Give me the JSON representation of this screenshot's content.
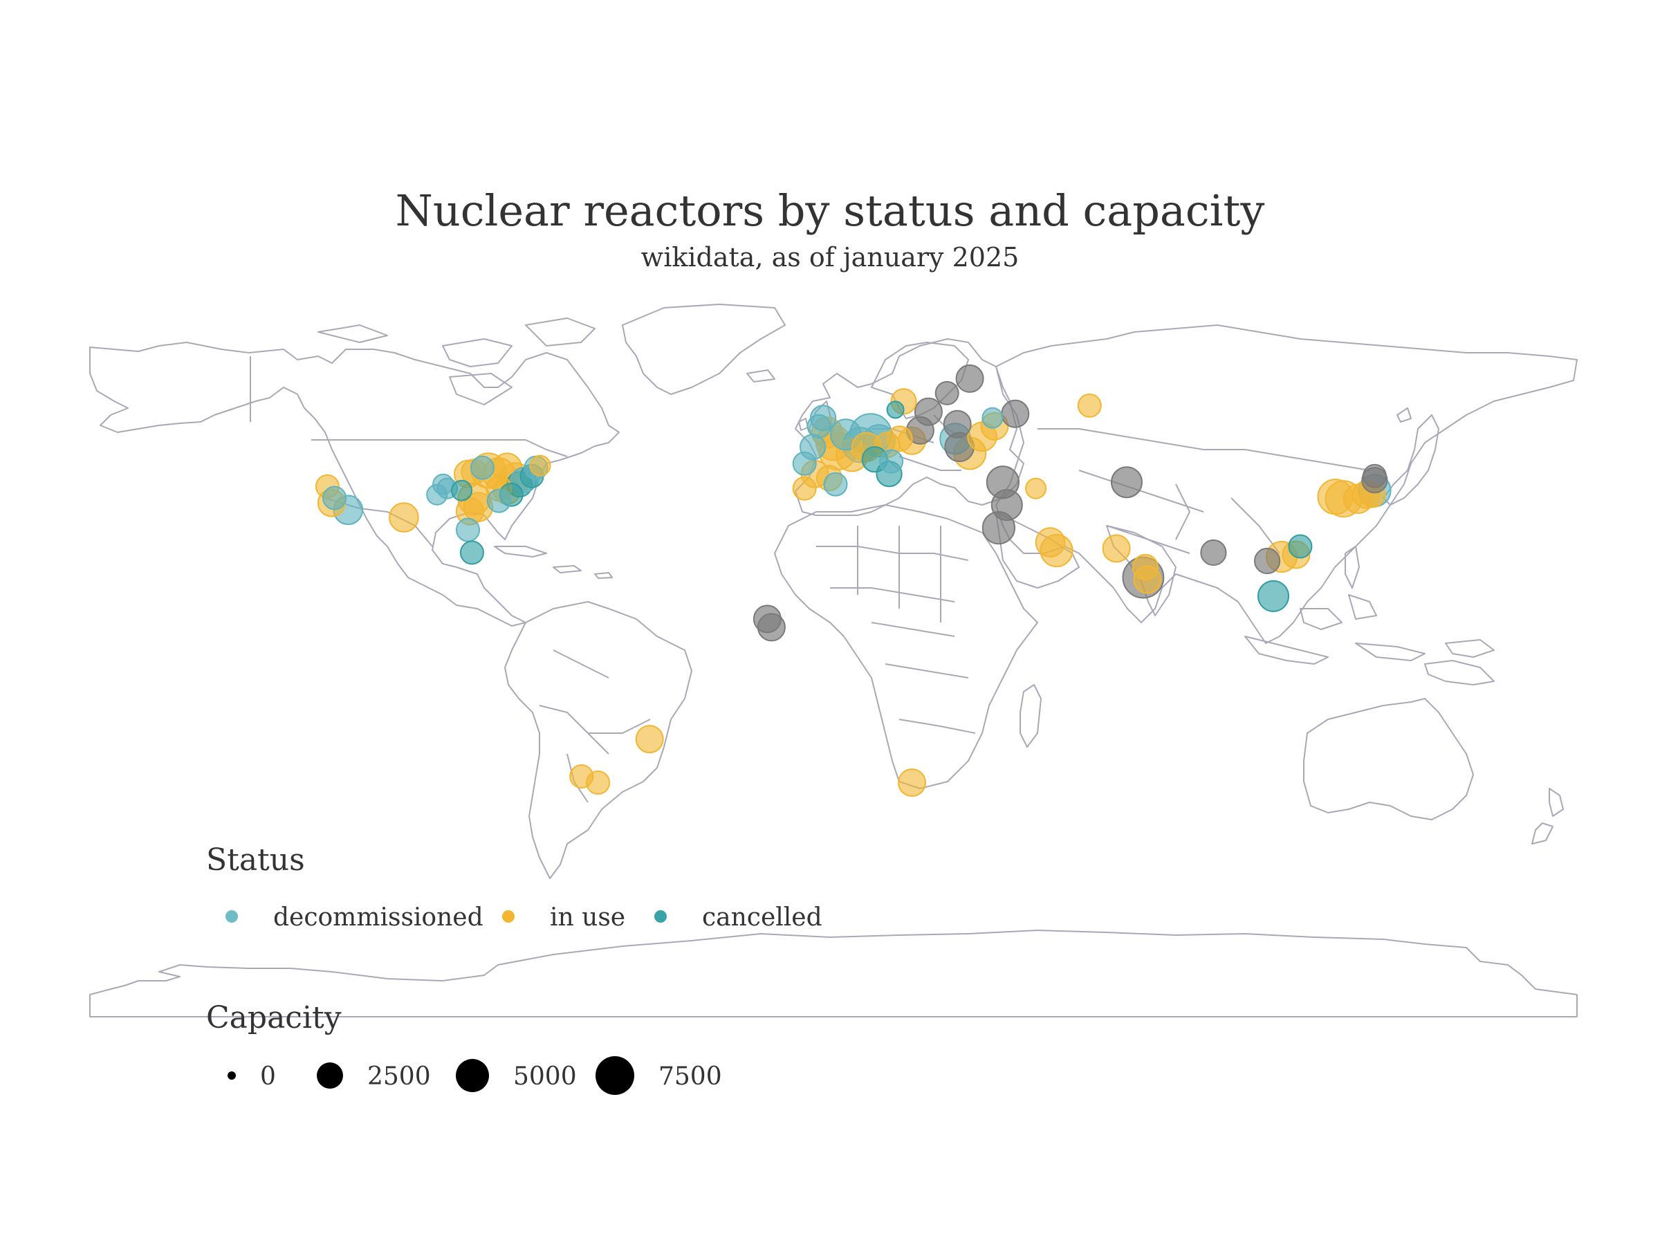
{
  "map": {
    "title": "Nuclear reactors by status and capacity",
    "subtitle": "wikidata, as of january 2025",
    "basemap": "world country outlines, equirectangular projection",
    "colors": {
      "decommissioned": "#5fb3bf",
      "in use": "#f2b632",
      "cancelled": "#2e9ea3",
      "other": "#7a7a7a",
      "outline": "#a8a8b8"
    }
  },
  "legend": {
    "status_title": "Status",
    "status_items": [
      {
        "label": "decommissioned",
        "color": "#6fbcc6"
      },
      {
        "label": "in use",
        "color": "#f2b632"
      },
      {
        "label": "cancelled",
        "color": "#3aa3a8"
      }
    ],
    "capacity_title": "Capacity",
    "capacity_items": [
      {
        "label": "0",
        "value": 0
      },
      {
        "label": "2500",
        "value": 2500
      },
      {
        "label": "5000",
        "value": 5000
      },
      {
        "label": "7500",
        "value": 7500
      }
    ]
  },
  "chart_data": {
    "type": "scatter",
    "projection": "equirectangular",
    "points": [
      {
        "lon": -122.5,
        "lat": 38.0,
        "status": "in use",
        "capacity": 1500
      },
      {
        "lon": -120.8,
        "lat": 35.2,
        "status": "decommissioned",
        "capacity": 1500
      },
      {
        "lon": -121.5,
        "lat": 34.0,
        "status": "in use",
        "capacity": 2500
      },
      {
        "lon": -117.5,
        "lat": 32.3,
        "status": "decommissioned",
        "capacity": 3000
      },
      {
        "lon": -104.0,
        "lat": 30.5,
        "status": "in use",
        "capacity": 3000
      },
      {
        "lon": -96.0,
        "lat": 36.0,
        "status": "decommissioned",
        "capacity": 1000
      },
      {
        "lon": -94.5,
        "lat": 38.5,
        "status": "decommissioned",
        "capacity": 1000
      },
      {
        "lon": -93.5,
        "lat": 37.5,
        "status": "decommissioned",
        "capacity": 1000
      },
      {
        "lon": -90.0,
        "lat": 37.0,
        "status": "cancelled",
        "capacity": 1000
      },
      {
        "lon": -88.5,
        "lat": 41.0,
        "status": "in use",
        "capacity": 2500
      },
      {
        "lon": -87.0,
        "lat": 41.5,
        "status": "in use",
        "capacity": 2000
      },
      {
        "lon": -85.0,
        "lat": 42.5,
        "status": "decommissioned",
        "capacity": 1500
      },
      {
        "lon": -83.5,
        "lat": 41.8,
        "status": "in use",
        "capacity": 5000
      },
      {
        "lon": -81.0,
        "lat": 41.0,
        "status": "in use",
        "capacity": 4000
      },
      {
        "lon": -79.0,
        "lat": 42.5,
        "status": "in use",
        "capacity": 3000
      },
      {
        "lon": -77.0,
        "lat": 40.0,
        "status": "in use",
        "capacity": 3500
      },
      {
        "lon": -76.0,
        "lat": 38.5,
        "status": "cancelled",
        "capacity": 2000
      },
      {
        "lon": -75.0,
        "lat": 39.5,
        "status": "decommissioned",
        "capacity": 2000
      },
      {
        "lon": -73.0,
        "lat": 40.5,
        "status": "cancelled",
        "capacity": 1500
      },
      {
        "lon": -72.0,
        "lat": 42.5,
        "status": "decommissioned",
        "capacity": 1500
      },
      {
        "lon": -71.0,
        "lat": 43.0,
        "status": "in use",
        "capacity": 1000
      },
      {
        "lon": -81.0,
        "lat": 37.5,
        "status": "in use",
        "capacity": 2000
      },
      {
        "lon": -79.0,
        "lat": 37.0,
        "status": "in use",
        "capacity": 2500
      },
      {
        "lon": -78.0,
        "lat": 36.0,
        "status": "cancelled",
        "capacity": 1500
      },
      {
        "lon": -81.0,
        "lat": 34.5,
        "status": "decommissioned",
        "capacity": 1500
      },
      {
        "lon": -86.0,
        "lat": 33.0,
        "status": "in use",
        "capacity": 3000
      },
      {
        "lon": -87.0,
        "lat": 35.0,
        "status": "in use",
        "capacity": 4000
      },
      {
        "lon": -88.0,
        "lat": 32.0,
        "status": "in use",
        "capacity": 2500
      },
      {
        "lon": -88.5,
        "lat": 27.5,
        "status": "decommissioned",
        "capacity": 1500
      },
      {
        "lon": -87.5,
        "lat": 22.0,
        "status": "cancelled",
        "capacity": 1500
      },
      {
        "lon": -7.0,
        "lat": 43.5,
        "status": "decommissioned",
        "capacity": 1500
      },
      {
        "lon": -5.0,
        "lat": 47.5,
        "status": "decommissioned",
        "capacity": 2000
      },
      {
        "lon": -3.5,
        "lat": 52.5,
        "status": "decommissioned",
        "capacity": 1500
      },
      {
        "lon": -2.5,
        "lat": 54.5,
        "status": "decommissioned",
        "capacity": 2000
      },
      {
        "lon": -1.5,
        "lat": 51.0,
        "status": "in use",
        "capacity": 3500
      },
      {
        "lon": 0.0,
        "lat": 48.5,
        "status": "in use",
        "capacity": 5000
      },
      {
        "lon": 1.0,
        "lat": 46.5,
        "status": "in use",
        "capacity": 6000
      },
      {
        "lon": 3.0,
        "lat": 50.5,
        "status": "decommissioned",
        "capacity": 3500
      },
      {
        "lon": 4.5,
        "lat": 45.5,
        "status": "in use",
        "capacity": 4000
      },
      {
        "lon": 6.5,
        "lat": 48.0,
        "status": "decommissioned",
        "capacity": 5000
      },
      {
        "lon": 9.0,
        "lat": 50.5,
        "status": "decommissioned",
        "capacity": 8000
      },
      {
        "lon": 8.0,
        "lat": 47.5,
        "status": "in use",
        "capacity": 3000
      },
      {
        "lon": 11.0,
        "lat": 49.0,
        "status": "decommissioned",
        "capacity": 4000
      },
      {
        "lon": 13.0,
        "lat": 48.0,
        "status": "in use",
        "capacity": 2000
      },
      {
        "lon": 10.0,
        "lat": 44.5,
        "status": "cancelled",
        "capacity": 2000
      },
      {
        "lon": 14.0,
        "lat": 44.0,
        "status": "decommissioned",
        "capacity": 1500
      },
      {
        "lon": 13.5,
        "lat": 41.0,
        "status": "cancelled",
        "capacity": 2000
      },
      {
        "lon": -4.5,
        "lat": 41.0,
        "status": "in use",
        "capacity": 2500
      },
      {
        "lon": -1.0,
        "lat": 40.0,
        "status": "in use",
        "capacity": 2000
      },
      {
        "lon": 0.5,
        "lat": 38.5,
        "status": "decommissioned",
        "capacity": 1500
      },
      {
        "lon": -7.0,
        "lat": 37.5,
        "status": "in use",
        "capacity": 1500
      },
      {
        "lon": 16.0,
        "lat": 49.5,
        "status": "in use",
        "capacity": 2000
      },
      {
        "lon": 19.0,
        "lat": 49.0,
        "status": "in use",
        "capacity": 2500
      },
      {
        "lon": 21.0,
        "lat": 51.5,
        "status": "other",
        "capacity": 2500
      },
      {
        "lon": 15.0,
        "lat": 56.5,
        "status": "cancelled",
        "capacity": 500
      },
      {
        "lon": 17.0,
        "lat": 58.5,
        "status": "in use",
        "capacity": 2000
      },
      {
        "lon": 23.0,
        "lat": 56.0,
        "status": "other",
        "capacity": 2500
      },
      {
        "lon": 27.5,
        "lat": 60.5,
        "status": "other",
        "capacity": 1500
      },
      {
        "lon": 33.0,
        "lat": 64.0,
        "status": "other",
        "capacity": 2500
      },
      {
        "lon": 30.0,
        "lat": 53.0,
        "status": "other",
        "capacity": 2500
      },
      {
        "lon": 29.5,
        "lat": 49.5,
        "status": "decommissioned",
        "capacity": 3500
      },
      {
        "lon": 33.0,
        "lat": 46.0,
        "status": "in use",
        "capacity": 4000
      },
      {
        "lon": 30.5,
        "lat": 47.5,
        "status": "other",
        "capacity": 3000
      },
      {
        "lon": 36.0,
        "lat": 50.0,
        "status": "in use",
        "capacity": 3000
      },
      {
        "lon": 39.0,
        "lat": 52.5,
        "status": "in use",
        "capacity": 2500
      },
      {
        "lon": 44.0,
        "lat": 55.5,
        "status": "other",
        "capacity": 2500
      },
      {
        "lon": 38.5,
        "lat": 54.5,
        "status": "decommissioned",
        "capacity": 1000
      },
      {
        "lon": 41.0,
        "lat": 39.0,
        "status": "other",
        "capacity": 4000
      },
      {
        "lon": 42.0,
        "lat": 33.5,
        "status": "other",
        "capacity": 3500
      },
      {
        "lon": 40.0,
        "lat": 28.0,
        "status": "other",
        "capacity": 4000
      },
      {
        "lon": 49.0,
        "lat": 37.5,
        "status": "in use",
        "capacity": 1000
      },
      {
        "lon": 54.0,
        "lat": 22.5,
        "status": "in use",
        "capacity": 4000
      },
      {
        "lon": 52.5,
        "lat": 24.5,
        "status": "in use",
        "capacity": 3000
      },
      {
        "lon": 62.0,
        "lat": 57.5,
        "status": "in use",
        "capacity": 1500
      },
      {
        "lon": 71.0,
        "lat": 39.0,
        "status": "other",
        "capacity": 3500
      },
      {
        "lon": 68.5,
        "lat": 23.0,
        "status": "in use",
        "capacity": 2500
      },
      {
        "lon": 75.0,
        "lat": 16.0,
        "status": "other",
        "capacity": 7500
      },
      {
        "lon": 75.5,
        "lat": 18.5,
        "status": "in use",
        "capacity": 2000
      },
      {
        "lon": 76.0,
        "lat": 15.5,
        "status": "in use",
        "capacity": 2500
      },
      {
        "lon": 92.0,
        "lat": 22.0,
        "status": "other",
        "capacity": 2000
      },
      {
        "lon": 105.0,
        "lat": 20.0,
        "status": "other",
        "capacity": 2000
      },
      {
        "lon": 106.5,
        "lat": 11.5,
        "status": "cancelled",
        "capacity": 3500
      },
      {
        "lon": 108.5,
        "lat": 21.0,
        "status": "in use",
        "capacity": 3500
      },
      {
        "lon": 112.0,
        "lat": 21.5,
        "status": "in use",
        "capacity": 2500
      },
      {
        "lon": 113.0,
        "lat": 23.5,
        "status": "cancelled",
        "capacity": 1500
      },
      {
        "lon": 121.5,
        "lat": 35.5,
        "status": "in use",
        "capacity": 5000
      },
      {
        "lon": 123.5,
        "lat": 35.0,
        "status": "in use",
        "capacity": 5500
      },
      {
        "lon": 127.0,
        "lat": 35.0,
        "status": "in use",
        "capacity": 3000
      },
      {
        "lon": 129.0,
        "lat": 36.0,
        "status": "in use",
        "capacity": 2500
      },
      {
        "lon": 130.5,
        "lat": 36.0,
        "status": "in use",
        "capacity": 2000
      },
      {
        "lon": 131.0,
        "lat": 37.0,
        "status": "decommissioned",
        "capacity": 4000
      },
      {
        "lon": 131.0,
        "lat": 39.5,
        "status": "other",
        "capacity": 2000
      },
      {
        "lon": 131.0,
        "lat": 40.5,
        "status": "other",
        "capacity": 1500
      },
      {
        "lon": -16.0,
        "lat": 6.0,
        "status": "other",
        "capacity": 2500
      },
      {
        "lon": -15.0,
        "lat": 4.0,
        "status": "other",
        "capacity": 2500
      },
      {
        "lon": 19.0,
        "lat": -33.5,
        "status": "in use",
        "capacity": 2500
      },
      {
        "lon": -44.5,
        "lat": -23.0,
        "status": "in use",
        "capacity": 2500
      },
      {
        "lon": -61.0,
        "lat": -32.0,
        "status": "in use",
        "capacity": 1500
      },
      {
        "lon": -57.0,
        "lat": -33.5,
        "status": "in use",
        "capacity": 1500
      }
    ]
  }
}
